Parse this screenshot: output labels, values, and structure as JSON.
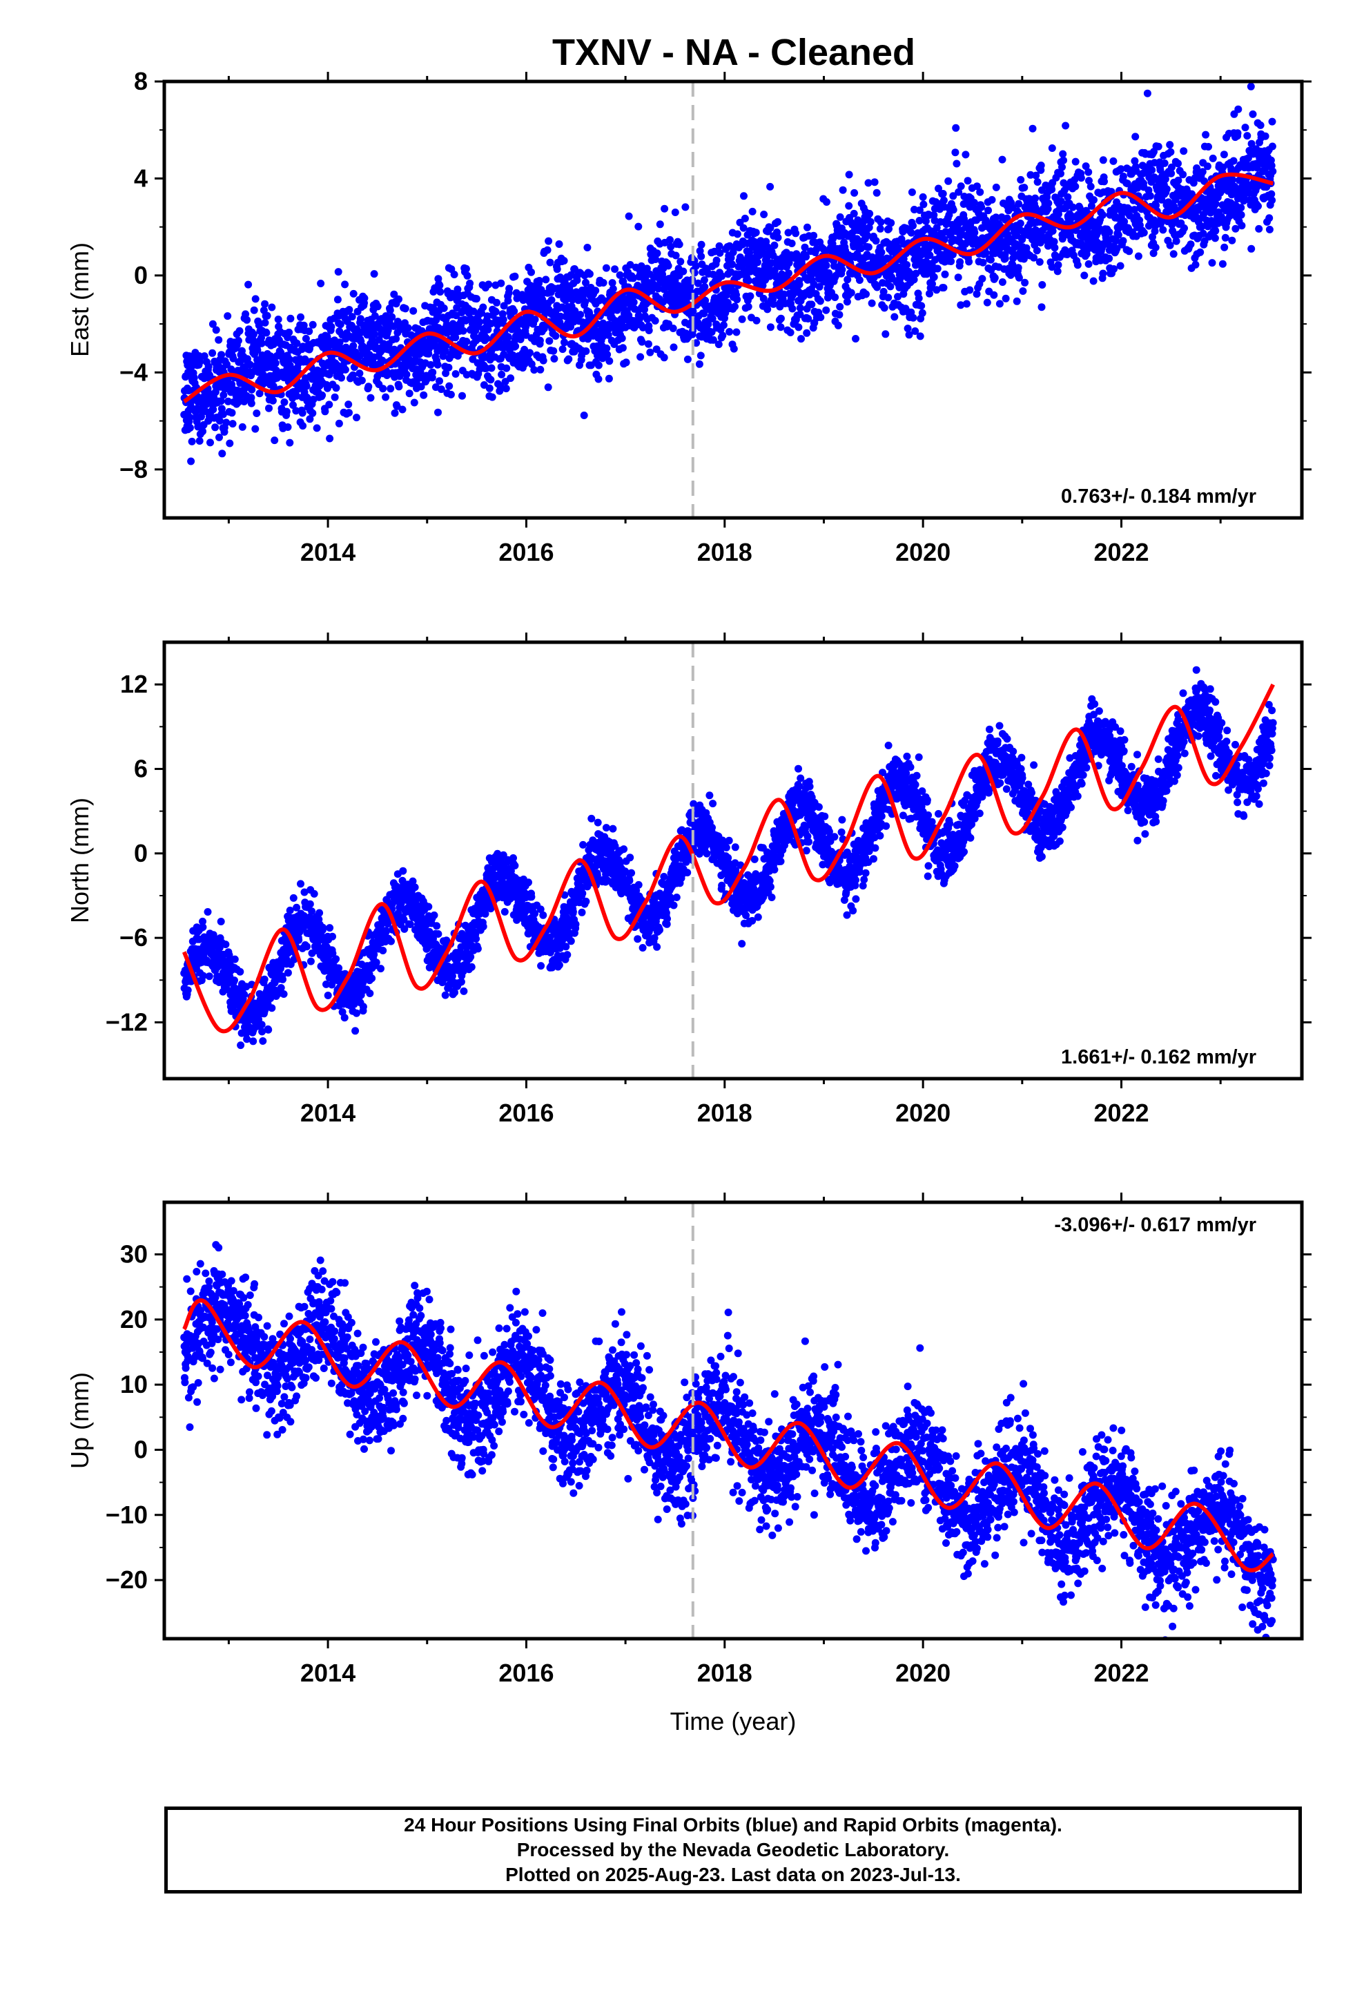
{
  "title": "TXNV  - NA - Cleaned",
  "colors": {
    "data": "#0000ff",
    "model": "#ff0000",
    "event_line": "#bbbbbb",
    "frame": "#000000"
  },
  "chart_data": [
    {
      "type": "scatter",
      "panel": "east",
      "ylabel": "East (mm)",
      "xlabel": "",
      "xlim": [
        2012.35,
        2023.82
      ],
      "ylim": [
        -10,
        8
      ],
      "yticks": [
        -8,
        -4,
        0,
        4,
        8
      ],
      "xticks": [
        2014,
        2016,
        2018,
        2020,
        2022
      ],
      "event_line_x": 2017.68,
      "rate_text": "0.763+/- 0.184 mm/yr",
      "rate_position": "bottom-right",
      "series": [
        {
          "role": "daily-positions",
          "x_start": 2012.55,
          "x_end": 2023.53,
          "trend_at_start": -4.6,
          "trend_slope": 0.763,
          "annual_amplitude": 0.55,
          "annual_phase": 0.05,
          "scatter": 1.1
        },
        {
          "role": "model-fit",
          "x": [
            2012.55,
            2013.0,
            2013.5,
            2014.0,
            2014.5,
            2015.0,
            2015.5,
            2016.0,
            2016.5,
            2017.0,
            2017.5,
            2018.0,
            2018.5,
            2019.0,
            2019.5,
            2020.0,
            2020.5,
            2021.0,
            2021.5,
            2022.0,
            2022.5,
            2023.0,
            2023.53
          ],
          "y": [
            -5.2,
            -4.1,
            -4.8,
            -3.2,
            -3.9,
            -2.4,
            -3.2,
            -1.5,
            -2.5,
            -0.6,
            -1.5,
            -0.3,
            -0.6,
            0.8,
            0.1,
            1.5,
            0.9,
            2.5,
            2.0,
            3.4,
            2.4,
            4.1,
            3.8
          ]
        }
      ]
    },
    {
      "type": "scatter",
      "panel": "north",
      "ylabel": "North (mm)",
      "xlabel": "",
      "xlim": [
        2012.35,
        2023.82
      ],
      "ylim": [
        -16,
        15
      ],
      "yticks": [
        -12,
        -6,
        0,
        6,
        12
      ],
      "xticks": [
        2014,
        2016,
        2018,
        2020,
        2022
      ],
      "event_line_x": 2017.68,
      "rate_text": "1.661+/- 0.162 mm/yr",
      "rate_position": "bottom-right",
      "series": [
        {
          "role": "daily-positions",
          "x_start": 2012.55,
          "x_end": 2023.53,
          "trend_at_start": -9.8,
          "trend_slope": 1.661,
          "annual_amplitude": 2.9,
          "annual_phase": 0.5,
          "scatter": 1.0
        },
        {
          "role": "model-fit",
          "x": [
            2012.55,
            2012.9,
            2013.2,
            2013.55,
            2013.9,
            2014.2,
            2014.55,
            2014.9,
            2015.2,
            2015.55,
            2015.9,
            2016.2,
            2016.55,
            2016.9,
            2017.2,
            2017.55,
            2017.9,
            2018.2,
            2018.55,
            2018.9,
            2019.2,
            2019.55,
            2019.9,
            2020.2,
            2020.55,
            2020.9,
            2021.2,
            2021.55,
            2021.9,
            2022.2,
            2022.55,
            2022.9,
            2023.2,
            2023.53
          ],
          "y": [
            -7.0,
            -12.5,
            -10.5,
            -5.4,
            -11.0,
            -8.8,
            -3.6,
            -9.5,
            -7.0,
            -2.0,
            -7.5,
            -5.2,
            -0.5,
            -6.0,
            -3.5,
            1.2,
            -3.5,
            -1.0,
            3.8,
            -1.8,
            0.5,
            5.5,
            -0.3,
            2.5,
            7.0,
            1.5,
            4.0,
            8.8,
            3.2,
            6.0,
            10.4,
            5.0,
            7.5,
            12.0
          ]
        }
      ]
    },
    {
      "type": "scatter",
      "panel": "up",
      "ylabel": "Up (mm)",
      "xlabel": "Time (year)",
      "xlim": [
        2012.35,
        2023.82
      ],
      "ylim": [
        -29,
        38
      ],
      "yticks": [
        -20,
        -10,
        0,
        10,
        20,
        30
      ],
      "xticks": [
        2014,
        2016,
        2018,
        2020,
        2022
      ],
      "event_line_x": 2017.68,
      "rate_text": "-3.096+/- 0.617 mm/yr",
      "rate_position": "top-right",
      "series": [
        {
          "role": "daily-positions",
          "x_start": 2012.55,
          "x_end": 2023.53,
          "trend_at_start": 18.5,
          "trend_slope": -3.096,
          "annual_amplitude": 5.0,
          "annual_phase": 0.7,
          "scatter": 4.0
        },
        {
          "role": "model-fit",
          "x": [
            2012.55,
            2012.75,
            2013.25,
            2013.75,
            2014.25,
            2014.75,
            2015.25,
            2015.75,
            2016.25,
            2016.75,
            2017.25,
            2017.75,
            2018.25,
            2018.75,
            2019.25,
            2019.75,
            2020.25,
            2020.75,
            2021.25,
            2021.75,
            2022.25,
            2022.75,
            2023.25,
            2023.53
          ],
          "y": [
            18.5,
            22.8,
            12.7,
            19.6,
            9.7,
            16.5,
            6.6,
            13.4,
            3.5,
            10.3,
            0.4,
            7.2,
            -2.7,
            4.1,
            -5.8,
            1.0,
            -8.9,
            -2.1,
            -12.0,
            -5.2,
            -15.1,
            -8.3,
            -18.2,
            -16.0
          ]
        }
      ]
    }
  ],
  "footer": {
    "line1": "24 Hour Positions Using Final Orbits (blue) and Rapid Orbits (magenta).",
    "line2": "Processed by the Nevada Geodetic Laboratory.",
    "line3": "Plotted on 2025-Aug-23. Last data on 2023-Jul-13."
  }
}
